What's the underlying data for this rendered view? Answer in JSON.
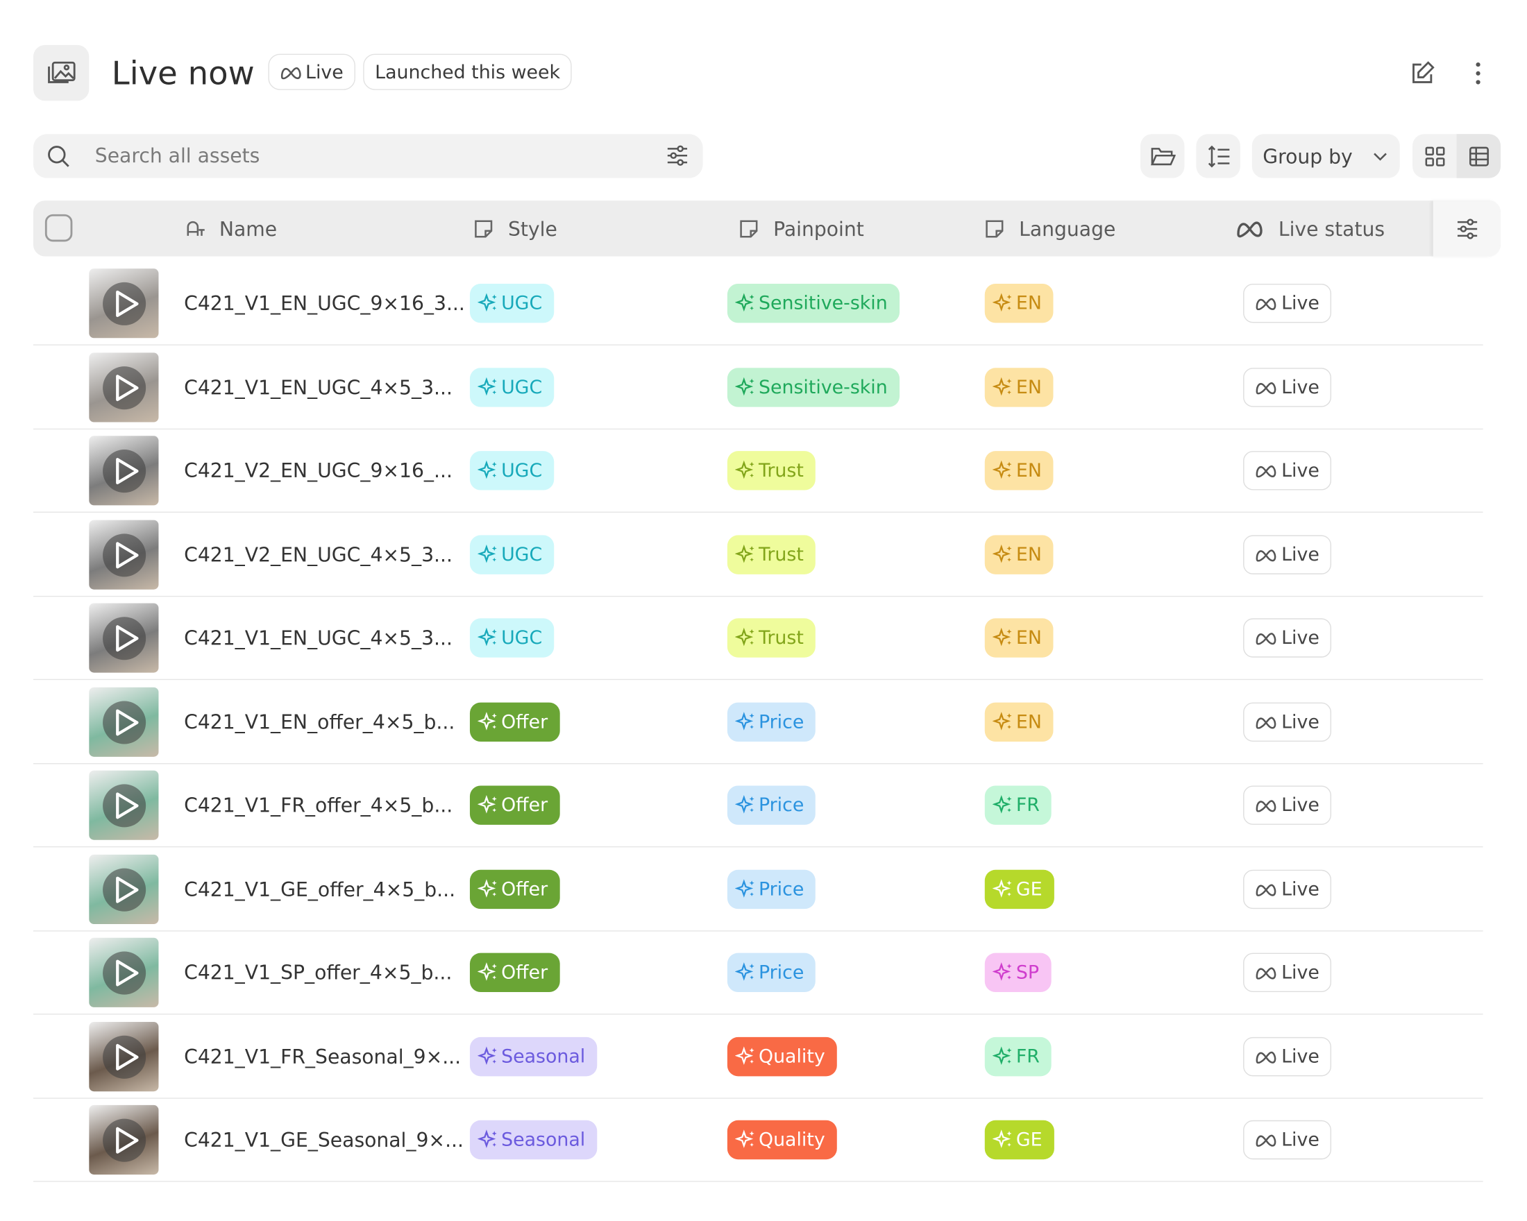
{
  "header": {
    "title": "Live now",
    "badges": [
      "Live",
      "Launched this week"
    ]
  },
  "toolbar": {
    "search_placeholder": "Search all assets",
    "group_by": "Group by"
  },
  "table": {
    "columns": [
      "Name",
      "Style",
      "Painpoint",
      "Language",
      "Live status"
    ],
    "rows": [
      {
        "name": "C421_V1_EN_UGC_9×16_3...",
        "thumb": "#9a9590",
        "style": {
          "text": "UGC",
          "bg": "#cdf8fb",
          "fg": "#17a9ba"
        },
        "painpoint": {
          "text": "Sensitive-skin",
          "bg": "#c2f3d2",
          "fg": "#1fa95b"
        },
        "language": {
          "text": "EN",
          "bg": "#fde3a4",
          "fg": "#c68b12"
        },
        "status": "Live"
      },
      {
        "name": "C421_V1_EN_UGC_4×5_3...",
        "thumb": "#9a9590",
        "style": {
          "text": "UGC",
          "bg": "#cdf8fb",
          "fg": "#17a9ba"
        },
        "painpoint": {
          "text": "Sensitive-skin",
          "bg": "#c2f3d2",
          "fg": "#1fa95b"
        },
        "language": {
          "text": "EN",
          "bg": "#fde3a4",
          "fg": "#c68b12"
        },
        "status": "Live"
      },
      {
        "name": "C421_V2_EN_UGC_9×16_...",
        "thumb": "#7c7c7c",
        "style": {
          "text": "UGC",
          "bg": "#cdf8fb",
          "fg": "#17a9ba"
        },
        "painpoint": {
          "text": "Trust",
          "bg": "#effc9c",
          "fg": "#82a51a"
        },
        "language": {
          "text": "EN",
          "bg": "#fde3a4",
          "fg": "#c68b12"
        },
        "status": "Live"
      },
      {
        "name": "C421_V2_EN_UGC_4×5_3...",
        "thumb": "#7c7c7c",
        "style": {
          "text": "UGC",
          "bg": "#cdf8fb",
          "fg": "#17a9ba"
        },
        "painpoint": {
          "text": "Trust",
          "bg": "#effc9c",
          "fg": "#82a51a"
        },
        "language": {
          "text": "EN",
          "bg": "#fde3a4",
          "fg": "#c68b12"
        },
        "status": "Live"
      },
      {
        "name": "C421_V1_EN_UGC_4×5_3...",
        "thumb": "#7c7c7c",
        "style": {
          "text": "UGC",
          "bg": "#cdf8fb",
          "fg": "#17a9ba"
        },
        "painpoint": {
          "text": "Trust",
          "bg": "#effc9c",
          "fg": "#82a51a"
        },
        "language": {
          "text": "EN",
          "bg": "#fde3a4",
          "fg": "#c68b12"
        },
        "status": "Live"
      },
      {
        "name": "C421_V1_EN_offer_4×5_b...",
        "thumb": "#7fb9a0",
        "style": {
          "text": "Offer",
          "bg": "#6aa535",
          "fg": "#ffffff"
        },
        "painpoint": {
          "text": "Price",
          "bg": "#cfe8fb",
          "fg": "#2b93df"
        },
        "language": {
          "text": "EN",
          "bg": "#fde3a4",
          "fg": "#c68b12"
        },
        "status": "Live"
      },
      {
        "name": "C421_V1_FR_offer_4×5_b...",
        "thumb": "#7fb9a0",
        "style": {
          "text": "Offer",
          "bg": "#6aa535",
          "fg": "#ffffff"
        },
        "painpoint": {
          "text": "Price",
          "bg": "#cfe8fb",
          "fg": "#2b93df"
        },
        "language": {
          "text": "FR",
          "bg": "#c5f7d9",
          "fg": "#1fae68"
        },
        "status": "Live"
      },
      {
        "name": "C421_V1_GE_offer_4×5_b...",
        "thumb": "#7fb9a0",
        "style": {
          "text": "Offer",
          "bg": "#6aa535",
          "fg": "#ffffff"
        },
        "painpoint": {
          "text": "Price",
          "bg": "#cfe8fb",
          "fg": "#2b93df"
        },
        "language": {
          "text": "GE",
          "bg": "#b6d92b",
          "fg": "#ffffff"
        },
        "status": "Live"
      },
      {
        "name": "C421_V1_SP_offer_4×5_b...",
        "thumb": "#7fb9a0",
        "style": {
          "text": "Offer",
          "bg": "#6aa535",
          "fg": "#ffffff"
        },
        "painpoint": {
          "text": "Price",
          "bg": "#cfe8fb",
          "fg": "#2b93df"
        },
        "language": {
          "text": "SP",
          "bg": "#f8c5f4",
          "fg": "#cf3dcd"
        },
        "status": "Live"
      },
      {
        "name": "C421_V1_FR_Seasonal_9×...",
        "thumb": "#6b5a4c",
        "style": {
          "text": "Seasonal",
          "bg": "#ddd7fb",
          "fg": "#6b5ade"
        },
        "painpoint": {
          "text": "Quality",
          "bg": "#f96a45",
          "fg": "#ffffff"
        },
        "language": {
          "text": "FR",
          "bg": "#c5f7d9",
          "fg": "#1fae68"
        },
        "status": "Live"
      },
      {
        "name": "C421_V1_GE_Seasonal_9×...",
        "thumb": "#6b5a4c",
        "style": {
          "text": "Seasonal",
          "bg": "#ddd7fb",
          "fg": "#6b5ade"
        },
        "painpoint": {
          "text": "Quality",
          "bg": "#f96a45",
          "fg": "#ffffff"
        },
        "language": {
          "text": "GE",
          "bg": "#b6d92b",
          "fg": "#ffffff"
        },
        "status": "Live"
      }
    ]
  }
}
